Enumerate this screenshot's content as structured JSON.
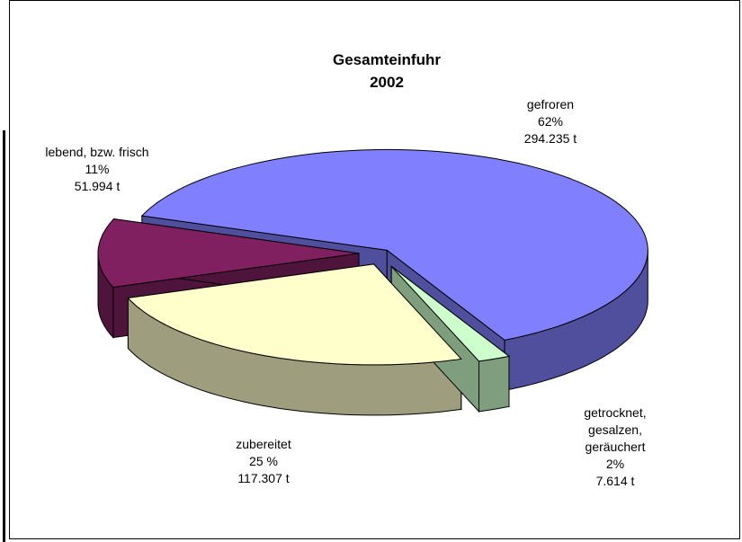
{
  "chart_data": {
    "type": "pie",
    "title": "Gesamteinfuhr",
    "subtitle": "2002",
    "categories": [
      "gefroren",
      "getrocknet, gesalzen, geräuchert",
      "zubereitet",
      "lebend, bzw. frisch"
    ],
    "values": [
      62,
      2,
      25,
      11
    ],
    "value_labels": [
      "62%",
      "2%",
      "25 %",
      "11%"
    ],
    "amounts": [
      294235,
      7614,
      117307,
      51994
    ],
    "amount_labels": [
      "294.235 t",
      "7.614 t",
      "117.307 t",
      "51.994 t"
    ],
    "colors": [
      "#8080ff",
      "#ccffcc",
      "#ffffcc",
      "#802060"
    ]
  }
}
